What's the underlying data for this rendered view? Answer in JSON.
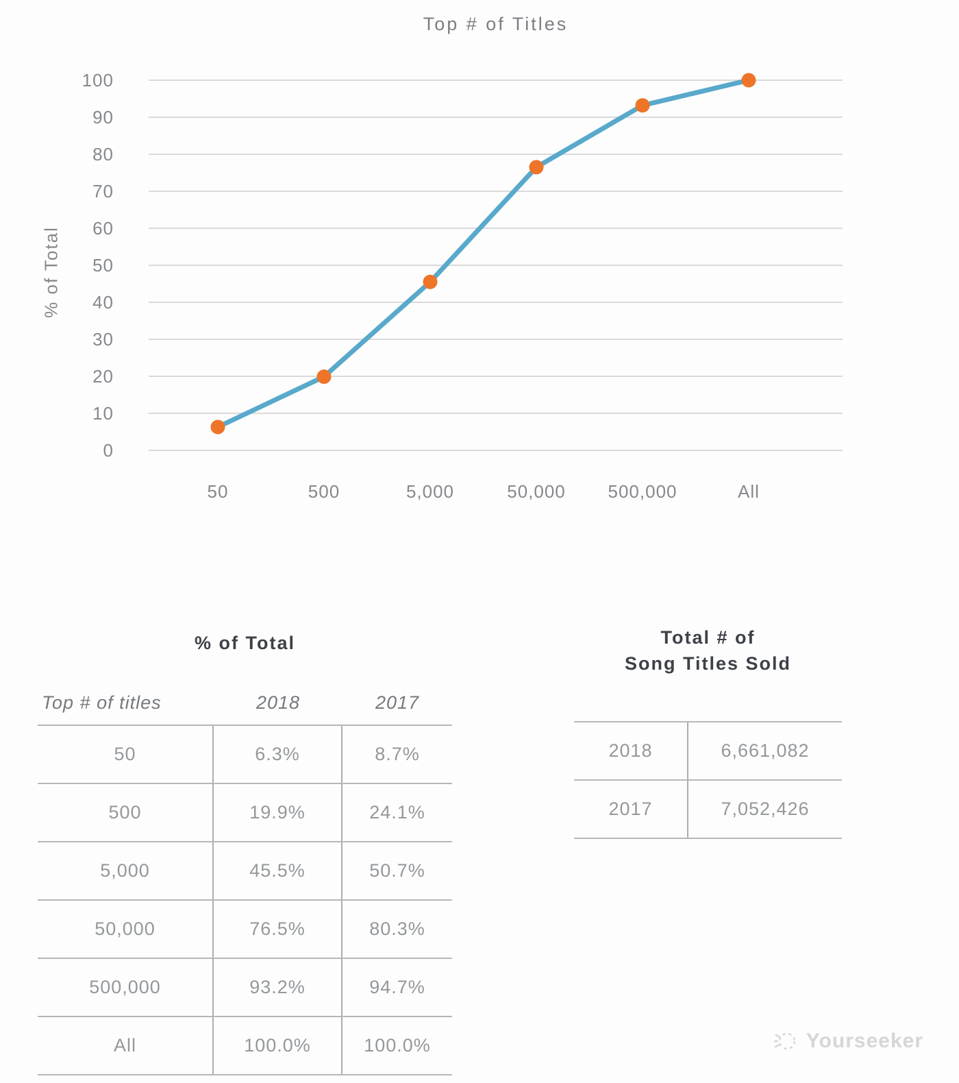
{
  "chart_data": {
    "type": "line",
    "title": "Top # of Titles",
    "categories": [
      "50",
      "500",
      "5,000",
      "50,000",
      "500,000",
      "All"
    ],
    "series": [
      {
        "name": "2018",
        "values": [
          6.3,
          19.9,
          45.5,
          76.5,
          93.2,
          100.0
        ]
      }
    ],
    "xlabel": "",
    "ylabel": "% of Total",
    "ylim": [
      0,
      100
    ],
    "ytick_step": 10,
    "grid": true,
    "legend_position": "none",
    "line_color": "#58A9CB",
    "marker_color": "#EE7428",
    "gridline_color": "#dadada"
  },
  "tables": {
    "pct_total": {
      "title": "% of Total",
      "columns": {
        "c1": "Top # of titles",
        "c2": "2018",
        "c3": "2017"
      },
      "rows": [
        {
          "label": "50",
          "y2018": "6.3%",
          "y2017": "8.7%"
        },
        {
          "label": "500",
          "y2018": "19.9%",
          "y2017": "24.1%"
        },
        {
          "label": "5,000",
          "y2018": "45.5%",
          "y2017": "50.7%"
        },
        {
          "label": "50,000",
          "y2018": "76.5%",
          "y2017": "80.3%"
        },
        {
          "label": "500,000",
          "y2018": "93.2%",
          "y2017": "94.7%"
        },
        {
          "label": "All",
          "y2018": "100.0%",
          "y2017": "100.0%"
        }
      ]
    },
    "songs_sold": {
      "title_line1": "Total # of",
      "title_line2": "Song Titles Sold",
      "rows": [
        {
          "year": "2018",
          "value": "6,661,082"
        },
        {
          "year": "2017",
          "value": "7,052,426"
        }
      ]
    }
  },
  "watermark": {
    "label": "Yourseeker"
  }
}
